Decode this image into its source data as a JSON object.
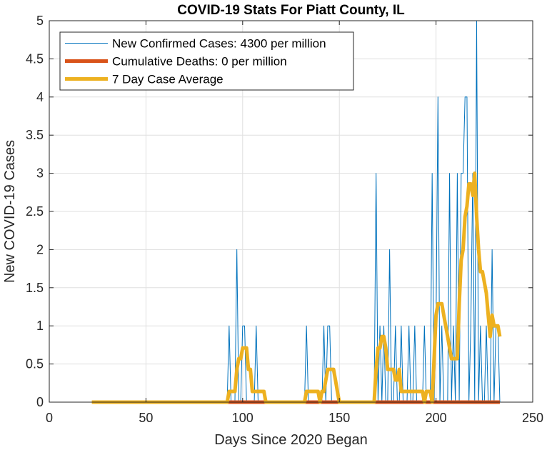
{
  "chart_data": {
    "type": "line",
    "title": "COVID-19 Stats For Piatt County, IL",
    "xlabel": "Days Since 2020 Began",
    "ylabel": "New COVID-19 Cases",
    "xlim": [
      0,
      250
    ],
    "ylim": [
      0,
      5
    ],
    "xticks": [
      0,
      50,
      100,
      150,
      200,
      250
    ],
    "yticks": [
      0,
      0.5,
      1,
      1.5,
      2,
      2.5,
      3,
      3.5,
      4,
      4.5,
      5
    ],
    "xtick_labels": [
      "0",
      "50",
      "100",
      "150",
      "200",
      "250"
    ],
    "ytick_labels": [
      "0",
      "0.5",
      "1",
      "1.5",
      "2",
      "2.5",
      "3",
      "3.5",
      "4",
      "4.5",
      "5"
    ],
    "grid": true,
    "legend_position": "top-left",
    "series": [
      {
        "name": "New Confirmed Cases: 4300 per million",
        "color": "#0072BD",
        "style": "thin",
        "x": [
          22,
          92,
          93,
          94,
          95,
          96,
          97,
          98,
          99,
          100,
          101,
          102,
          103,
          104,
          105,
          106,
          107,
          108,
          109,
          132,
          133,
          134,
          140,
          141,
          142,
          143,
          144,
          145,
          146,
          147,
          168,
          169,
          170,
          171,
          172,
          173,
          174,
          175,
          176,
          177,
          178,
          179,
          180,
          181,
          182,
          183,
          184,
          185,
          186,
          187,
          188,
          189,
          190,
          191,
          192,
          193,
          194,
          195,
          196,
          197,
          198,
          199,
          200,
          201,
          202,
          203,
          204,
          205,
          206,
          207,
          208,
          209,
          210,
          211,
          212,
          213,
          214,
          215,
          216,
          217,
          218,
          219,
          220,
          221,
          222,
          223,
          224,
          225,
          226,
          227,
          228,
          229,
          230,
          231,
          232,
          233
        ],
        "y": [
          0,
          0,
          1,
          0,
          0,
          0,
          2,
          0,
          0,
          1,
          1,
          0,
          0,
          0,
          0,
          0,
          1,
          0,
          0,
          0,
          1,
          0,
          0,
          0,
          1,
          0,
          1,
          1,
          0,
          0,
          0,
          3,
          0,
          1,
          0,
          1,
          0,
          0,
          2,
          0,
          0,
          1,
          0,
          0,
          1,
          0,
          0,
          0,
          1,
          0,
          0,
          1,
          0,
          0,
          0,
          0,
          1,
          0,
          0,
          0,
          3,
          0,
          1,
          4,
          0,
          1,
          0,
          0,
          0,
          3,
          0,
          1,
          0,
          3,
          0,
          3,
          3,
          4,
          4,
          0,
          1,
          3,
          0,
          5,
          0,
          1,
          0,
          0,
          1,
          0,
          0,
          2,
          0,
          1,
          1,
          0
        ]
      },
      {
        "name": "Cumulative Deaths: 0 per million",
        "color": "#D95319",
        "style": "thick",
        "x": [
          92,
          233
        ],
        "y": [
          0,
          0
        ]
      },
      {
        "name": "7 Day Case Average",
        "color": "#EDB120",
        "style": "thick",
        "x": [
          22,
          92,
          93,
          96,
          97,
          98,
          99,
          100,
          101,
          102,
          103,
          104,
          105,
          106,
          107,
          108,
          109,
          110,
          111,
          112,
          113,
          114,
          115,
          132,
          133,
          134,
          139,
          140,
          141,
          142,
          143,
          144,
          145,
          146,
          147,
          148,
          149,
          150,
          151,
          152,
          167,
          168,
          169,
          170,
          171,
          172,
          173,
          174,
          175,
          176,
          177,
          178,
          179,
          180,
          181,
          182,
          183,
          184,
          185,
          186,
          187,
          188,
          189,
          190,
          191,
          192,
          193,
          194,
          195,
          196,
          197,
          198,
          199,
          200,
          201,
          202,
          203,
          204,
          205,
          206,
          207,
          208,
          209,
          210,
          211,
          212,
          213,
          214,
          215,
          216,
          217,
          218,
          219,
          220,
          221,
          222,
          223,
          224,
          225,
          226,
          227,
          228,
          229,
          230,
          231,
          232,
          233
        ],
        "y": [
          0,
          0,
          0.14,
          0.14,
          0.43,
          0.57,
          0.57,
          0.71,
          0.71,
          0.71,
          0.43,
          0.43,
          0.14,
          0.14,
          0.14,
          0.14,
          0.14,
          0.14,
          0.14,
          0,
          0,
          0,
          0,
          0,
          0.14,
          0.14,
          0.14,
          0,
          0.14,
          0.14,
          0.29,
          0.43,
          0.43,
          0.43,
          0.43,
          0.29,
          0.14,
          0,
          0,
          0,
          0,
          0,
          0.43,
          0.71,
          0.71,
          0.86,
          0.86,
          0.71,
          0.43,
          0.43,
          0.43,
          0.43,
          0.29,
          0.29,
          0.43,
          0.14,
          0.14,
          0.14,
          0.14,
          0.14,
          0.14,
          0.14,
          0.14,
          0.14,
          0.14,
          0.14,
          0.14,
          0,
          0.14,
          0.14,
          0.14,
          0,
          0.57,
          1.14,
          1.29,
          1.29,
          1.29,
          1.14,
          1,
          0.86,
          0.71,
          0.57,
          0.57,
          0.57,
          0.57,
          1.29,
          1.86,
          2,
          2.43,
          2.57,
          2.86,
          2.86,
          2.71,
          3,
          2.43,
          2,
          1.71,
          1.71,
          1.57,
          1.43,
          1.14,
          0.86,
          1.14,
          1,
          1,
          1,
          0.86
        ]
      }
    ]
  }
}
